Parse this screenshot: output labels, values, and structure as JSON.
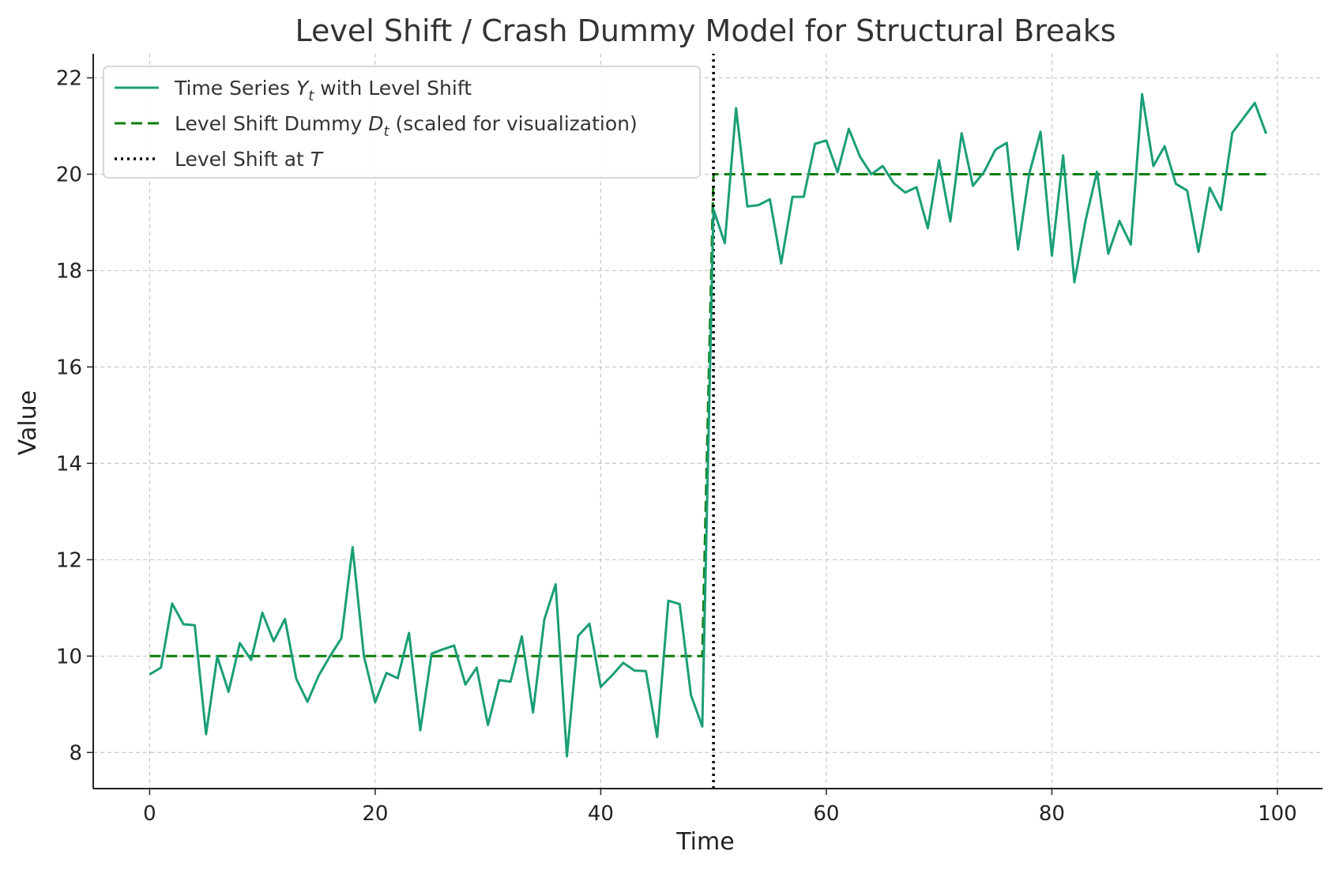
{
  "chart_data": {
    "type": "line",
    "title": "Level Shift / Crash Dummy Model for Structural Breaks",
    "xlabel": "Time",
    "ylabel": "Value",
    "xlim": [
      -5,
      104
    ],
    "ylim": [
      7.25,
      22.5
    ],
    "xticks": [
      0,
      20,
      40,
      60,
      80,
      100
    ],
    "yticks": [
      8,
      10,
      12,
      14,
      16,
      18,
      20,
      22
    ],
    "grid": true,
    "legend_position": "top-left",
    "break_point": 50,
    "series": [
      {
        "name": "Time Series Y_t with Level Shift",
        "legend_main": "Time Series ",
        "legend_symbol": "Y",
        "legend_sub": "t",
        "legend_rest": " with Level Shift",
        "style": "solid",
        "color": "#1a9e77",
        "x": [
          0,
          1,
          2,
          3,
          4,
          5,
          6,
          7,
          8,
          9,
          10,
          11,
          12,
          13,
          14,
          15,
          16,
          17,
          18,
          19,
          20,
          21,
          22,
          23,
          24,
          25,
          26,
          27,
          28,
          29,
          30,
          31,
          32,
          33,
          34,
          35,
          36,
          37,
          38,
          39,
          40,
          41,
          42,
          43,
          44,
          45,
          46,
          47,
          48,
          49,
          50,
          51,
          52,
          53,
          54,
          55,
          56,
          57,
          58,
          59,
          60,
          61,
          62,
          63,
          64,
          65,
          66,
          67,
          68,
          69,
          70,
          71,
          72,
          73,
          74,
          75,
          76,
          77,
          78,
          79,
          80,
          81,
          82,
          83,
          84,
          85,
          86,
          87,
          88,
          89,
          90,
          91,
          92,
          93,
          94,
          95,
          96,
          97,
          98,
          99
        ],
        "y": [
          9.62,
          9.76,
          11.09,
          10.66,
          10.64,
          8.38,
          9.99,
          9.26,
          10.27,
          9.92,
          10.9,
          10.31,
          10.77,
          9.53,
          9.05,
          9.6,
          10.0,
          10.37,
          12.26,
          10.0,
          9.04,
          9.65,
          9.54,
          10.48,
          8.46,
          10.05,
          10.14,
          10.22,
          9.41,
          9.76,
          8.57,
          9.5,
          9.47,
          10.41,
          8.83,
          10.76,
          11.49,
          7.92,
          10.42,
          10.67,
          9.36,
          9.6,
          9.86,
          9.7,
          9.69,
          8.32,
          11.15,
          11.08,
          9.19,
          8.54,
          19.27,
          18.57,
          21.37,
          19.33,
          19.36,
          19.48,
          18.15,
          19.53,
          19.53,
          20.63,
          20.7,
          20.04,
          20.94,
          20.36,
          20.0,
          20.17,
          19.81,
          19.62,
          19.73,
          18.88,
          20.29,
          19.02,
          20.85,
          19.76,
          20.05,
          20.51,
          20.65,
          18.44,
          20.01,
          20.88,
          18.31,
          20.39,
          17.76,
          19.05,
          20.05,
          18.35,
          19.03,
          18.54,
          21.66,
          20.17,
          20.58,
          19.8,
          19.66,
          18.39,
          19.72,
          19.26,
          20.86,
          21.17,
          21.48,
          20.84
        ]
      },
      {
        "name": "Level Shift Dummy D_t (scaled for visualization)",
        "legend_main": "Level Shift Dummy ",
        "legend_symbol": "D",
        "legend_sub": "t",
        "legend_rest": " (scaled for visualization)",
        "style": "dashed",
        "color": "#0b7d0b",
        "x": [
          0,
          49,
          50,
          99
        ],
        "y": [
          10,
          10,
          20,
          20
        ]
      },
      {
        "name": "Level Shift at T",
        "legend_main": "Level Shift at ",
        "legend_symbol": "T",
        "legend_sub": "",
        "legend_rest": "",
        "style": "dotted",
        "color": "#000000",
        "x": [
          50,
          50
        ],
        "y": [
          7.25,
          22.5
        ]
      }
    ]
  }
}
